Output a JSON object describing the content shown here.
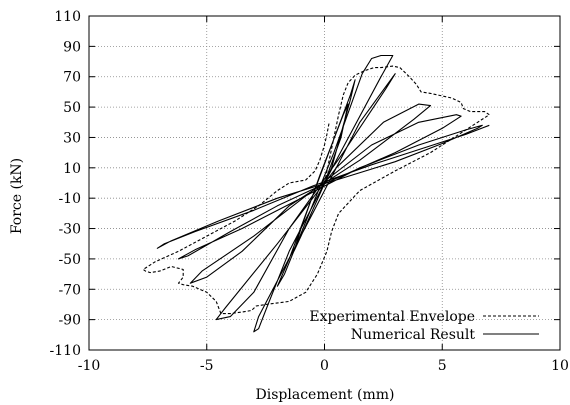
{
  "chart_data": {
    "type": "line",
    "xlabel": "Displacement (mm)",
    "ylabel": "Force (kN)",
    "xlim": [
      -10,
      10
    ],
    "ylim": [
      -110,
      110
    ],
    "xticks": [
      -10,
      -5,
      0,
      5,
      10
    ],
    "yticks": [
      -110,
      -90,
      -70,
      -50,
      -30,
      -10,
      10,
      30,
      50,
      70,
      90,
      110
    ],
    "grid": true,
    "legend_position": "bottom-right",
    "series": [
      {
        "name": "Experimental Envelope",
        "style": "dashed",
        "color": "#000000",
        "points": [
          [
            0.0,
            0.0
          ],
          [
            0.2,
            15
          ],
          [
            0.4,
            30
          ],
          [
            0.6,
            45
          ],
          [
            0.8,
            58
          ],
          [
            1.0,
            66
          ],
          [
            1.3,
            71
          ],
          [
            1.7,
            74
          ],
          [
            2.1,
            76
          ],
          [
            2.4,
            76
          ],
          [
            2.9,
            77
          ],
          [
            3.2,
            76
          ],
          [
            3.6,
            70
          ],
          [
            3.9,
            65
          ],
          [
            4.1,
            60
          ],
          [
            4.5,
            59
          ],
          [
            5.4,
            56
          ],
          [
            5.8,
            53
          ],
          [
            5.9,
            49
          ],
          [
            6.2,
            47
          ],
          [
            6.8,
            47
          ],
          [
            7.0,
            45
          ],
          [
            6.5,
            40
          ],
          [
            5.5,
            30
          ],
          [
            4.5,
            20
          ],
          [
            3.0,
            8
          ],
          [
            1.5,
            -5
          ],
          [
            0.6,
            -20
          ],
          [
            0.4,
            -28
          ],
          [
            0.3,
            -32
          ],
          [
            0.1,
            -45
          ],
          [
            -0.3,
            -60
          ],
          [
            -0.8,
            -72
          ],
          [
            -1.5,
            -78
          ],
          [
            -2.5,
            -80
          ],
          [
            -2.9,
            -81
          ],
          [
            -3.1,
            -84
          ],
          [
            -3.5,
            -85
          ],
          [
            -4.0,
            -86
          ],
          [
            -4.4,
            -86
          ],
          [
            -4.6,
            -78
          ],
          [
            -5.0,
            -72
          ],
          [
            -5.6,
            -68
          ],
          [
            -6.0,
            -67
          ],
          [
            -6.2,
            -66
          ],
          [
            -6.0,
            -62
          ],
          [
            -6.0,
            -57
          ],
          [
            -6.5,
            -55
          ],
          [
            -7.0,
            -58
          ],
          [
            -7.4,
            -59
          ],
          [
            -7.6,
            -58
          ],
          [
            -7.7,
            -57
          ],
          [
            -7.2,
            -52
          ],
          [
            -6.2,
            -45
          ],
          [
            -5.0,
            -35
          ],
          [
            -3.8,
            -25
          ],
          [
            -2.8,
            -15
          ],
          [
            -2.0,
            -5
          ],
          [
            -1.5,
            0
          ],
          [
            -0.8,
            2
          ],
          [
            -0.4,
            8
          ],
          [
            -0.2,
            15
          ],
          [
            0.0,
            25
          ],
          [
            0.1,
            32
          ],
          [
            0.2,
            40
          ]
        ]
      },
      {
        "name": "Numerical Result",
        "style": "solid",
        "color": "#000000",
        "points": [
          [
            0.0,
            0.0
          ],
          [
            0.7,
            30
          ],
          [
            1.0,
            52
          ],
          [
            0.8,
            45
          ],
          [
            -0.2,
            5
          ],
          [
            -1.0,
            -30
          ],
          [
            -1.3,
            -45
          ],
          [
            -1.0,
            -35
          ],
          [
            0.3,
            10
          ],
          [
            1.1,
            55
          ],
          [
            1.3,
            68
          ],
          [
            1.1,
            58
          ],
          [
            -0.3,
            0
          ],
          [
            -1.5,
            -50
          ],
          [
            -2.0,
            -68
          ],
          [
            -1.7,
            -60
          ],
          [
            0.4,
            20
          ],
          [
            1.6,
            72
          ],
          [
            2.0,
            82
          ],
          [
            2.4,
            84
          ],
          [
            2.9,
            84
          ],
          [
            2.4,
            70
          ],
          [
            0.5,
            15
          ],
          [
            -1.5,
            -45
          ],
          [
            -2.4,
            -80
          ],
          [
            -2.8,
            -96
          ],
          [
            -3.0,
            -98
          ],
          [
            -2.8,
            -88
          ],
          [
            -0.5,
            -20
          ],
          [
            1.5,
            40
          ],
          [
            3.0,
            72
          ],
          [
            2.6,
            62
          ],
          [
            0.8,
            20
          ],
          [
            -1.5,
            -30
          ],
          [
            -3.0,
            -72
          ],
          [
            -4.0,
            -88
          ],
          [
            -4.6,
            -90
          ],
          [
            -4.2,
            -82
          ],
          [
            -2.0,
            -40
          ],
          [
            0.5,
            10
          ],
          [
            2.5,
            40
          ],
          [
            4.0,
            52
          ],
          [
            4.5,
            51
          ],
          [
            3.8,
            42
          ],
          [
            1.5,
            15
          ],
          [
            -1.5,
            -15
          ],
          [
            -3.5,
            -45
          ],
          [
            -5.0,
            -62
          ],
          [
            -5.7,
            -66
          ],
          [
            -5.2,
            -58
          ],
          [
            -3.0,
            -35
          ],
          [
            -0.5,
            -5
          ],
          [
            2.0,
            25
          ],
          [
            4.0,
            40
          ],
          [
            5.6,
            45
          ],
          [
            5.8,
            44
          ],
          [
            5.0,
            36
          ],
          [
            3.0,
            20
          ],
          [
            0.5,
            3
          ],
          [
            -2.0,
            -15
          ],
          [
            -4.0,
            -32
          ],
          [
            -5.8,
            -48
          ],
          [
            -6.2,
            -50
          ],
          [
            -5.5,
            -44
          ],
          [
            -3.5,
            -30
          ],
          [
            -1.0,
            -10
          ],
          [
            1.5,
            10
          ],
          [
            4.0,
            25
          ],
          [
            6.0,
            35
          ],
          [
            6.7,
            38
          ],
          [
            6.5,
            36
          ],
          [
            5.0,
            26
          ],
          [
            3.0,
            14
          ],
          [
            0.5,
            2
          ],
          [
            -2.0,
            -10
          ],
          [
            -4.5,
            -25
          ],
          [
            -6.5,
            -38
          ],
          [
            -7.1,
            -43
          ],
          [
            -6.8,
            -40
          ],
          [
            -5.5,
            -32
          ],
          [
            -3.0,
            -18
          ],
          [
            -0.5,
            -2
          ],
          [
            2.0,
            12
          ],
          [
            4.0,
            22
          ],
          [
            6.0,
            32
          ],
          [
            7.0,
            38
          ]
        ]
      }
    ]
  }
}
